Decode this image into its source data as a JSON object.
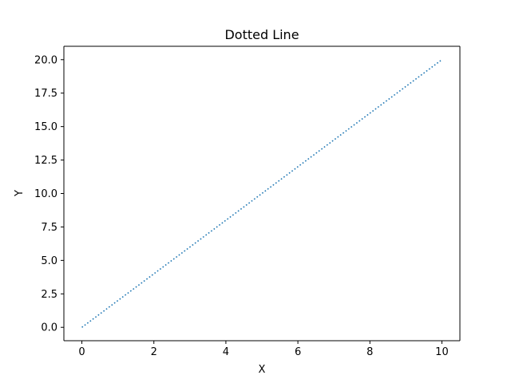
{
  "chart_data": {
    "type": "line",
    "title": "Dotted Line",
    "xlabel": "X",
    "ylabel": "Y",
    "xlim": [
      -0.5,
      10.5
    ],
    "ylim": [
      -1.0,
      21.0
    ],
    "xticks": [
      0,
      2,
      4,
      6,
      8,
      10
    ],
    "xtick_labels": [
      "0",
      "2",
      "4",
      "6",
      "8",
      "10"
    ],
    "yticks": [
      0,
      2.5,
      5,
      7.5,
      10,
      12.5,
      15,
      17.5,
      20
    ],
    "ytick_labels": [
      "0.0",
      "2.5",
      "5.0",
      "7.5",
      "10.0",
      "12.5",
      "15.0",
      "17.5",
      "20.0"
    ],
    "grid": false,
    "series": [
      {
        "line_style": "dotted",
        "color": "#1f77b4",
        "x": [
          0,
          1,
          2,
          3,
          4,
          5,
          6,
          7,
          8,
          9,
          10
        ],
        "y": [
          0,
          2,
          4,
          6,
          8,
          10,
          12,
          14,
          16,
          18,
          20
        ]
      }
    ]
  }
}
